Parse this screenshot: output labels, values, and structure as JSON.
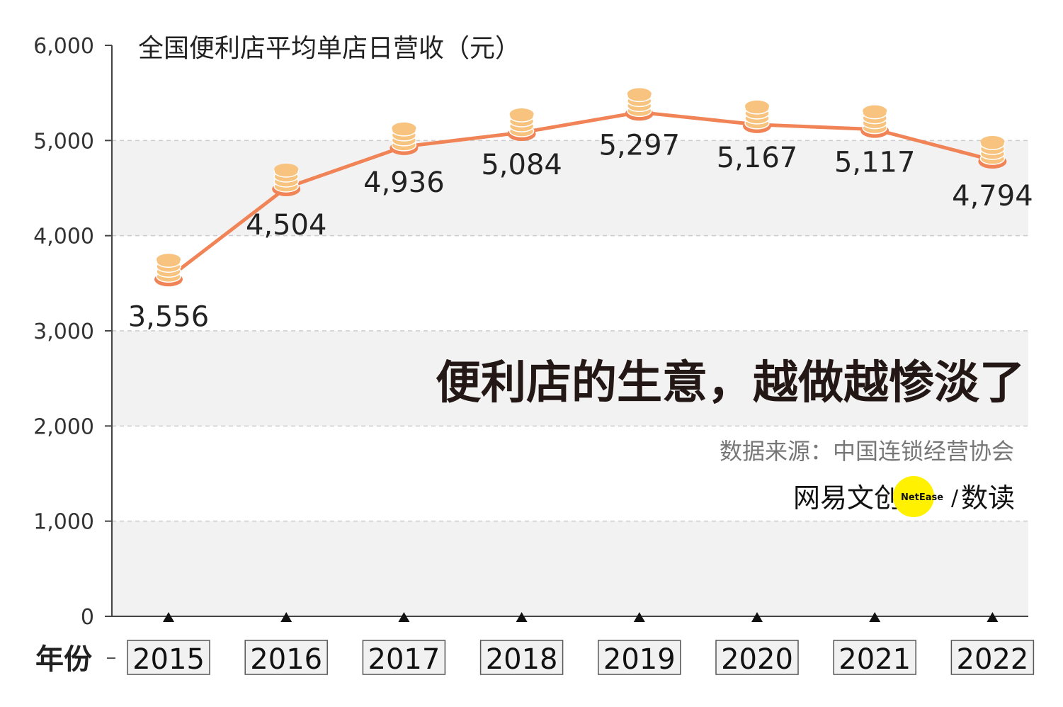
{
  "chart_data": {
    "type": "line",
    "title": "全国便利店平均单店日营收（元）",
    "xlabel": "年份",
    "ylabel": "",
    "ylim": [
      0,
      6000
    ],
    "yticks": [
      "0",
      "1,000",
      "2,000",
      "3,000",
      "4,000",
      "5,000",
      "6,000"
    ],
    "categories": [
      "2015",
      "2016",
      "2017",
      "2018",
      "2019",
      "2020",
      "2021",
      "2022"
    ],
    "series": [
      {
        "values": [
          3556,
          4504,
          4936,
          5084,
          5297,
          5167,
          5117,
          4794
        ],
        "labels": [
          "3,556",
          "4,504",
          "4,936",
          "5,084",
          "5,297",
          "5,167",
          "5,117",
          "4,794"
        ]
      }
    ],
    "grid": true,
    "legend": "none"
  },
  "headline": "便利店的生意，越做越惨淡了",
  "source": "数据来源：中国连锁经营协会",
  "brand": {
    "name": "网易文创",
    "badge": "NetEase",
    "slash": "/",
    "column": "数读"
  },
  "colors": {
    "line": "#F08457",
    "band": "#F2F2F2",
    "coin": "#F7C37E",
    "coin_edge": "#F08457",
    "badge": "#FFF100"
  }
}
